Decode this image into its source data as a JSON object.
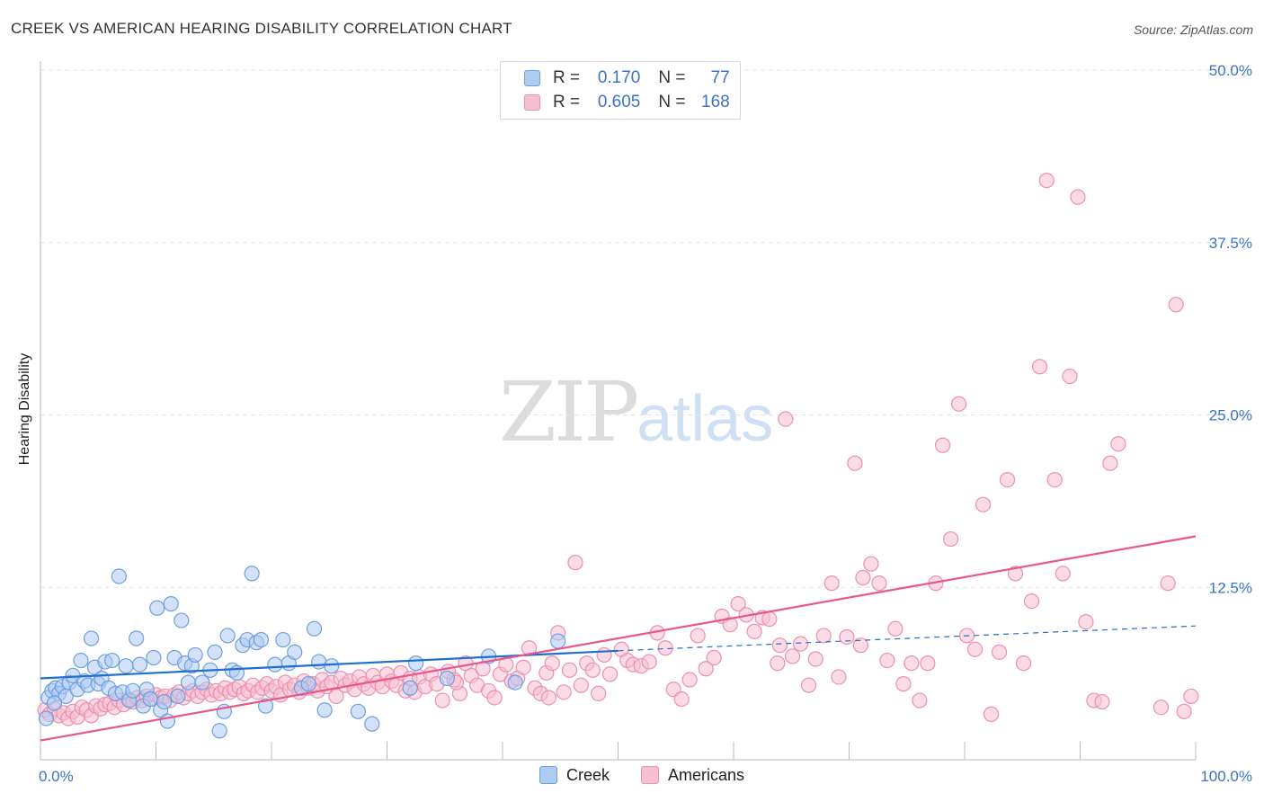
{
  "header": {
    "title": "CREEK VS AMERICAN HEARING DISABILITY CORRELATION CHART",
    "source": "Source: ZipAtlas.com"
  },
  "watermark": {
    "zip": "ZIP",
    "atlas": "atlas"
  },
  "legend": {
    "rows": [
      {
        "r_label": "R = ",
        "r_value": "0.170",
        "n_label": "N = ",
        "n_value": "77"
      },
      {
        "r_label": "R = ",
        "r_value": "0.605",
        "n_label": "N = ",
        "n_value": "168"
      }
    ]
  },
  "colors": {
    "creek_fill": "#aecbf2",
    "creek_stroke": "#6e9fe0",
    "creek_line": "#1f6fd1",
    "americans_fill": "#f7bfd2",
    "americans_stroke": "#ec8fb0",
    "americans_line": "#e8578a",
    "tick_label": "#3b73c8",
    "grid": "#e2e2e2"
  },
  "chart_data": {
    "type": "scatter",
    "title": "CREEK VS AMERICAN HEARING DISABILITY CORRELATION CHART",
    "xlabel": "",
    "ylabel": "Hearing Disability",
    "xlim": [
      0,
      100
    ],
    "ylim": [
      0,
      50
    ],
    "x_tick_labels": [
      "0.0%",
      "100.0%"
    ],
    "y_ticks": [
      12.5,
      25.0,
      37.5,
      50.0
    ],
    "y_tick_labels": [
      "12.5%",
      "25.0%",
      "37.5%",
      "50.0%"
    ],
    "grid": true,
    "legend_position": "top-center",
    "series": [
      {
        "name": "Creek",
        "r": 0.17,
        "n": 77,
        "trend": {
          "x": [
            0,
            50
          ],
          "y": [
            5.9,
            7.9
          ],
          "dashed_extension_to": [
            100,
            9.7
          ]
        },
        "points": [
          [
            0.5,
            3.0
          ],
          [
            0.7,
            4.5
          ],
          [
            1.0,
            5.0
          ],
          [
            1.3,
            5.2
          ],
          [
            1.6,
            4.8
          ],
          [
            1.9,
            5.3
          ],
          [
            2.2,
            4.6
          ],
          [
            2.5,
            5.6
          ],
          [
            2.8,
            6.1
          ],
          [
            3.2,
            5.1
          ],
          [
            3.5,
            7.2
          ],
          [
            3.8,
            5.7
          ],
          [
            4.1,
            5.4
          ],
          [
            4.4,
            8.8
          ],
          [
            4.7,
            6.7
          ],
          [
            5.0,
            5.5
          ],
          [
            5.3,
            5.9
          ],
          [
            5.6,
            7.1
          ],
          [
            5.9,
            5.2
          ],
          [
            6.2,
            7.2
          ],
          [
            6.5,
            4.8
          ],
          [
            6.8,
            13.3
          ],
          [
            7.1,
            4.9
          ],
          [
            7.4,
            6.8
          ],
          [
            7.7,
            4.3
          ],
          [
            8.0,
            5.0
          ],
          [
            8.3,
            8.8
          ],
          [
            8.6,
            6.9
          ],
          [
            8.9,
            3.9
          ],
          [
            9.2,
            5.1
          ],
          [
            9.5,
            4.4
          ],
          [
            9.8,
            7.4
          ],
          [
            10.1,
            11.0
          ],
          [
            10.4,
            3.6
          ],
          [
            10.7,
            4.2
          ],
          [
            11.0,
            2.8
          ],
          [
            11.3,
            11.3
          ],
          [
            11.6,
            7.4
          ],
          [
            11.9,
            4.6
          ],
          [
            12.2,
            10.1
          ],
          [
            12.5,
            7.0
          ],
          [
            12.8,
            5.6
          ],
          [
            13.1,
            6.8
          ],
          [
            13.4,
            7.6
          ],
          [
            14.0,
            5.6
          ],
          [
            14.7,
            6.5
          ],
          [
            15.1,
            7.8
          ],
          [
            15.5,
            2.1
          ],
          [
            15.9,
            3.5
          ],
          [
            16.2,
            9.0
          ],
          [
            16.6,
            6.5
          ],
          [
            17.0,
            6.3
          ],
          [
            17.5,
            8.3
          ],
          [
            17.9,
            8.7
          ],
          [
            18.3,
            13.5
          ],
          [
            18.7,
            8.5
          ],
          [
            19.1,
            8.7
          ],
          [
            19.5,
            3.9
          ],
          [
            20.3,
            6.9
          ],
          [
            21.0,
            8.7
          ],
          [
            21.5,
            7.0
          ],
          [
            22.0,
            7.8
          ],
          [
            22.6,
            5.2
          ],
          [
            23.2,
            5.5
          ],
          [
            23.7,
            9.5
          ],
          [
            24.1,
            7.1
          ],
          [
            24.6,
            3.6
          ],
          [
            25.2,
            6.8
          ],
          [
            27.5,
            3.5
          ],
          [
            28.7,
            2.6
          ],
          [
            32.0,
            5.2
          ],
          [
            32.5,
            7.0
          ],
          [
            35.2,
            5.9
          ],
          [
            38.8,
            7.5
          ],
          [
            41.1,
            5.6
          ],
          [
            44.8,
            8.6
          ],
          [
            1.2,
            4.1
          ]
        ]
      },
      {
        "name": "Americans",
        "r": 0.605,
        "n": 168,
        "trend": {
          "x": [
            0,
            100
          ],
          "y": [
            1.4,
            16.2
          ]
        },
        "points": [
          [
            0.4,
            3.6
          ],
          [
            0.8,
            3.3
          ],
          [
            1.2,
            3.7
          ],
          [
            1.6,
            3.2
          ],
          [
            2.0,
            3.4
          ],
          [
            2.4,
            3.0
          ],
          [
            2.8,
            3.5
          ],
          [
            3.2,
            3.1
          ],
          [
            3.6,
            3.8
          ],
          [
            4.0,
            3.6
          ],
          [
            4.4,
            3.2
          ],
          [
            4.8,
            3.9
          ],
          [
            5.2,
            3.7
          ],
          [
            5.6,
            4.0
          ],
          [
            6.0,
            4.1
          ],
          [
            6.4,
            3.8
          ],
          [
            6.8,
            4.3
          ],
          [
            7.2,
            4.0
          ],
          [
            7.6,
            4.4
          ],
          [
            8.0,
            4.2
          ],
          [
            8.4,
            4.5
          ],
          [
            8.8,
            4.3
          ],
          [
            9.2,
            4.6
          ],
          [
            9.6,
            4.4
          ],
          [
            10.0,
            4.7
          ],
          [
            10.4,
            4.5
          ],
          [
            10.8,
            4.6
          ],
          [
            11.2,
            4.3
          ],
          [
            11.6,
            4.7
          ],
          [
            12.0,
            4.9
          ],
          [
            12.4,
            4.5
          ],
          [
            12.8,
            4.8
          ],
          [
            13.2,
            5.0
          ],
          [
            13.6,
            4.6
          ],
          [
            14.0,
            4.9
          ],
          [
            14.4,
            5.1
          ],
          [
            14.8,
            4.7
          ],
          [
            15.2,
            5.0
          ],
          [
            15.6,
            4.8
          ],
          [
            16.0,
            5.2
          ],
          [
            16.4,
            4.9
          ],
          [
            16.8,
            5.1
          ],
          [
            17.2,
            5.3
          ],
          [
            17.6,
            4.8
          ],
          [
            18.0,
            5.0
          ],
          [
            18.4,
            5.4
          ],
          [
            18.8,
            4.9
          ],
          [
            19.2,
            5.2
          ],
          [
            19.6,
            5.5
          ],
          [
            20.0,
            5.0
          ],
          [
            20.4,
            5.3
          ],
          [
            20.8,
            4.7
          ],
          [
            21.2,
            5.6
          ],
          [
            21.6,
            5.1
          ],
          [
            22.0,
            5.4
          ],
          [
            22.4,
            4.9
          ],
          [
            22.8,
            5.7
          ],
          [
            23.2,
            5.2
          ],
          [
            23.6,
            5.5
          ],
          [
            24.0,
            5.0
          ],
          [
            24.4,
            5.8
          ],
          [
            24.8,
            5.3
          ],
          [
            25.2,
            5.6
          ],
          [
            25.6,
            4.6
          ],
          [
            26.0,
            5.9
          ],
          [
            26.4,
            5.4
          ],
          [
            26.8,
            5.7
          ],
          [
            27.2,
            5.1
          ],
          [
            27.6,
            6.0
          ],
          [
            28.0,
            5.5
          ],
          [
            28.4,
            5.2
          ],
          [
            28.8,
            6.1
          ],
          [
            29.2,
            5.6
          ],
          [
            29.6,
            5.3
          ],
          [
            30.0,
            6.2
          ],
          [
            30.4,
            5.7
          ],
          [
            30.8,
            5.4
          ],
          [
            31.2,
            6.3
          ],
          [
            31.6,
            5.0
          ],
          [
            32.0,
            5.9
          ],
          [
            32.4,
            4.9
          ],
          [
            32.8,
            6.0
          ],
          [
            33.3,
            5.3
          ],
          [
            33.8,
            6.2
          ],
          [
            34.3,
            5.5
          ],
          [
            34.8,
            4.3
          ],
          [
            35.3,
            6.4
          ],
          [
            35.8,
            5.8
          ],
          [
            36.3,
            4.8
          ],
          [
            36.8,
            7.0
          ],
          [
            37.3,
            6.1
          ],
          [
            37.8,
            5.4
          ],
          [
            38.3,
            6.6
          ],
          [
            38.8,
            5.0
          ],
          [
            39.3,
            4.5
          ],
          [
            39.8,
            6.2
          ],
          [
            40.3,
            6.9
          ],
          [
            40.8,
            5.7
          ],
          [
            41.3,
            5.9
          ],
          [
            41.8,
            6.7
          ],
          [
            42.3,
            8.1
          ],
          [
            42.8,
            5.2
          ],
          [
            43.3,
            4.8
          ],
          [
            43.8,
            6.3
          ],
          [
            44.3,
            7.0
          ],
          [
            44.8,
            9.2
          ],
          [
            45.3,
            4.9
          ],
          [
            45.8,
            6.5
          ],
          [
            46.3,
            14.3
          ],
          [
            46.8,
            5.4
          ],
          [
            47.3,
            7.0
          ],
          [
            47.8,
            6.5
          ],
          [
            48.3,
            4.8
          ],
          [
            48.8,
            7.6
          ],
          [
            49.3,
            6.2
          ],
          [
            50.3,
            8.0
          ],
          [
            50.8,
            7.2
          ],
          [
            51.3,
            6.9
          ],
          [
            52.0,
            6.8
          ],
          [
            52.7,
            7.1
          ],
          [
            53.4,
            9.2
          ],
          [
            54.1,
            8.1
          ],
          [
            54.8,
            5.1
          ],
          [
            55.5,
            4.4
          ],
          [
            56.2,
            5.8
          ],
          [
            56.9,
            9.0
          ],
          [
            57.6,
            6.6
          ],
          [
            58.3,
            7.4
          ],
          [
            59.0,
            10.4
          ],
          [
            59.7,
            9.8
          ],
          [
            60.4,
            11.3
          ],
          [
            61.1,
            10.5
          ],
          [
            61.8,
            9.3
          ],
          [
            62.5,
            10.3
          ],
          [
            63.1,
            10.2
          ],
          [
            63.8,
            7.0
          ],
          [
            64.5,
            24.7
          ],
          [
            65.1,
            7.5
          ],
          [
            65.8,
            8.4
          ],
          [
            66.5,
            5.4
          ],
          [
            67.1,
            7.3
          ],
          [
            67.8,
            9.0
          ],
          [
            68.5,
            12.8
          ],
          [
            69.1,
            6.0
          ],
          [
            69.8,
            8.9
          ],
          [
            70.5,
            21.5
          ],
          [
            71.2,
            13.2
          ],
          [
            71.9,
            14.2
          ],
          [
            72.6,
            12.8
          ],
          [
            73.3,
            7.2
          ],
          [
            74.0,
            9.5
          ],
          [
            74.7,
            5.5
          ],
          [
            75.4,
            7.0
          ],
          [
            76.1,
            4.3
          ],
          [
            76.8,
            7.0
          ],
          [
            77.5,
            12.8
          ],
          [
            78.1,
            22.8
          ],
          [
            78.8,
            16.0
          ],
          [
            79.5,
            25.8
          ],
          [
            80.2,
            9.0
          ],
          [
            80.9,
            8.0
          ],
          [
            81.6,
            18.5
          ],
          [
            82.3,
            3.3
          ],
          [
            83.0,
            7.8
          ],
          [
            83.7,
            20.3
          ],
          [
            84.4,
            13.5
          ],
          [
            85.1,
            7.0
          ],
          [
            85.8,
            11.5
          ],
          [
            86.5,
            28.5
          ],
          [
            87.1,
            42.0
          ],
          [
            87.8,
            20.3
          ],
          [
            88.5,
            13.5
          ],
          [
            89.1,
            27.8
          ],
          [
            89.8,
            40.8
          ],
          [
            90.5,
            10.0
          ],
          [
            91.2,
            4.3
          ],
          [
            91.9,
            4.2
          ],
          [
            92.6,
            21.5
          ],
          [
            93.3,
            22.9
          ],
          [
            97.0,
            3.8
          ],
          [
            97.6,
            12.8
          ],
          [
            98.3,
            33.0
          ],
          [
            99.0,
            3.5
          ],
          [
            99.6,
            4.6
          ],
          [
            36.0,
            5.6
          ],
          [
            44.0,
            4.5
          ],
          [
            64.0,
            8.3
          ],
          [
            71.0,
            8.3
          ]
        ]
      }
    ]
  },
  "bottom_legend": {
    "items": [
      {
        "label": "Creek"
      },
      {
        "label": "Americans"
      }
    ]
  }
}
